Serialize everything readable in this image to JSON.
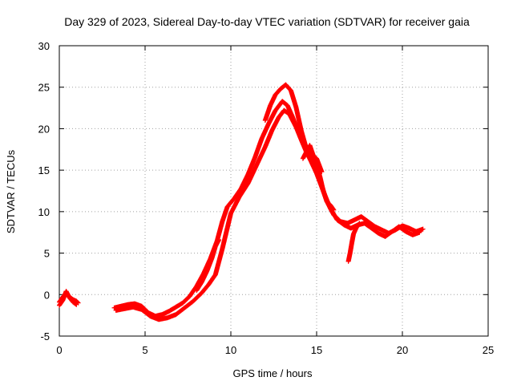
{
  "chart_data": {
    "type": "scatter",
    "title": "Day 329 of 2023, Sidereal Day-to-day VTEC variation (SDTVAR) for receiver gaia",
    "xlabel": "GPS time / hours",
    "ylabel": "SDTVAR / TECUs",
    "xlim": [
      0,
      25
    ],
    "ylim": [
      -5,
      30
    ],
    "xticks": [
      0,
      5,
      10,
      15,
      20,
      25
    ],
    "yticks": [
      -5,
      0,
      5,
      10,
      15,
      20,
      25,
      30
    ],
    "grid": true,
    "marker": "plus",
    "series": [
      {
        "name": "SDTVAR",
        "color": "#ff0000",
        "tracks": [
          {
            "x": [
              0.0,
              0.2,
              0.4,
              0.6,
              0.8,
              1.0,
              1.1
            ],
            "y": [
              -0.9,
              -0.3,
              0.2,
              -0.3,
              -0.6,
              -0.8,
              -1.0
            ]
          },
          {
            "x": [
              0.0,
              0.2,
              0.4,
              0.6,
              0.8,
              1.0
            ],
            "y": [
              -1.3,
              -0.7,
              0.4,
              -0.4,
              -0.9,
              -1.2
            ]
          },
          {
            "x": [
              3.2,
              3.6,
              4.0,
              4.4,
              4.8,
              5.2,
              5.6,
              6.0,
              6.4,
              6.8,
              7.2,
              7.6,
              8.0,
              8.4,
              8.8,
              9.2,
              9.5,
              9.8,
              10.2,
              10.6,
              11.0,
              11.4,
              11.8,
              12.2,
              12.6,
              13.0,
              13.3,
              13.6,
              14.0,
              14.4,
              14.8,
              15.2,
              15.6,
              16.0,
              16.4,
              16.8,
              17.2,
              17.6,
              18.0,
              18.4,
              18.8,
              19.2,
              19.6,
              20.0,
              20.4,
              20.8,
              21.2
            ],
            "y": [
              -1.6,
              -1.4,
              -1.2,
              -1.1,
              -1.4,
              -2.2,
              -2.6,
              -2.4,
              -2.0,
              -1.5,
              -1.0,
              -0.2,
              1.0,
              2.5,
              4.3,
              6.5,
              8.8,
              10.6,
              11.6,
              12.8,
              14.5,
              16.5,
              18.8,
              20.6,
              22.2,
              23.3,
              22.8,
              21.4,
              19.2,
              17.2,
              15.6,
              13.8,
              11.2,
              9.6,
              8.8,
              8.6,
              9.0,
              9.4,
              8.8,
              8.2,
              7.8,
              7.4,
              7.8,
              8.3,
              8.0,
              7.6,
              7.9
            ]
          },
          {
            "x": [
              3.3,
              3.8,
              4.3,
              4.8,
              5.3,
              5.8,
              6.3,
              6.8,
              7.3,
              7.8,
              8.3,
              8.7,
              9.1,
              9.5,
              10.0,
              10.5,
              11.0,
              11.5,
              12.0,
              12.4,
              12.8,
              13.1,
              13.4,
              13.8,
              14.2,
              14.6,
              15.0,
              15.4,
              15.8,
              16.2,
              16.6,
              17.0,
              17.4,
              17.8,
              18.2,
              18.6,
              19.0,
              19.4,
              19.8,
              20.2,
              20.6,
              21.0
            ],
            "y": [
              -1.9,
              -1.7,
              -1.5,
              -1.8,
              -2.6,
              -3.0,
              -2.8,
              -2.4,
              -1.6,
              -0.8,
              0.2,
              1.2,
              2.4,
              5.5,
              9.8,
              11.8,
              13.4,
              15.6,
              17.8,
              19.8,
              21.4,
              22.2,
              21.8,
              20.2,
              18.2,
              16.4,
              14.6,
              12.4,
              10.4,
              9.0,
              8.4,
              8.0,
              8.4,
              8.6,
              8.0,
              7.4,
              7.0,
              7.6,
              8.2,
              7.6,
              7.2,
              7.5
            ]
          },
          {
            "x": [
              8.0,
              8.3,
              8.6,
              8.9,
              9.1,
              9.3
            ],
            "y": [
              0.5,
              1.5,
              2.8,
              4.4,
              5.8,
              6.6
            ]
          },
          {
            "x": [
              12.0,
              12.3,
              12.6,
              12.9,
              13.2,
              13.5,
              13.8,
              14.1,
              14.4,
              14.7,
              15.0,
              15.3
            ],
            "y": [
              21.0,
              22.8,
              24.1,
              24.8,
              25.3,
              24.6,
              22.6,
              19.8,
              17.6,
              16.9,
              16.4,
              14.8
            ]
          },
          {
            "x": [
              14.2,
              14.4,
              14.6,
              14.8,
              15.0,
              15.2,
              15.4,
              15.6,
              15.8,
              16.0
            ],
            "y": [
              16.4,
              17.2,
              18.0,
              16.8,
              15.4,
              14.2,
              12.4,
              11.2,
              10.8,
              10.2
            ]
          },
          {
            "x": [
              16.85,
              16.95,
              17.05,
              17.15,
              17.3,
              17.5
            ],
            "y": [
              4.0,
              5.0,
              6.2,
              7.3,
              8.0,
              8.6
            ]
          }
        ]
      }
    ]
  }
}
